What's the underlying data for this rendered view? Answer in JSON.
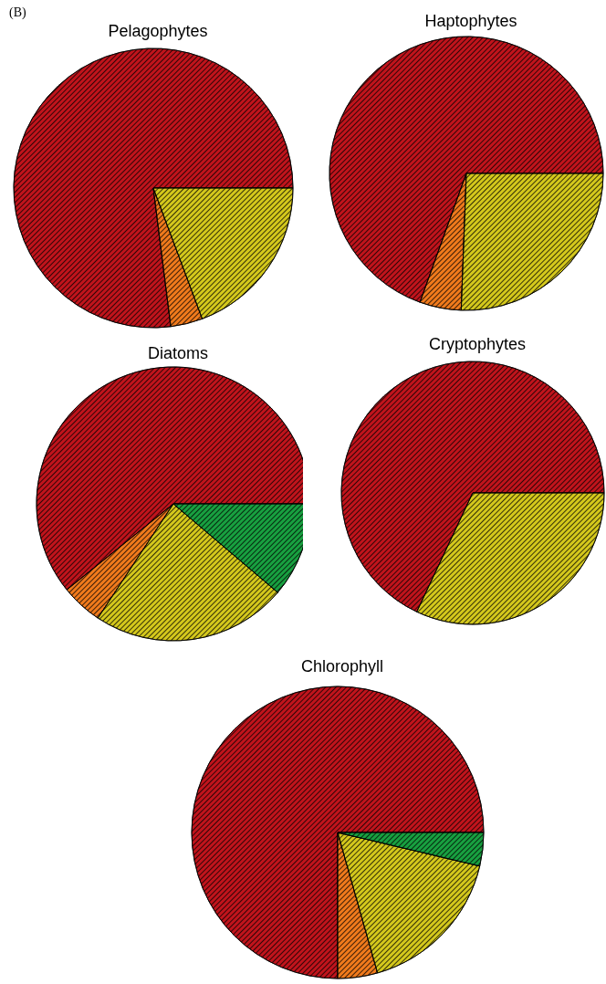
{
  "chart_data": [
    {
      "type": "pie",
      "title": "Pelagophytes",
      "annotations": [
        "(B)"
      ],
      "categories": [
        null,
        null,
        null
      ],
      "values": [
        77,
        3.7,
        19.3
      ],
      "colors": [
        "#c0141c",
        "#f07a1c",
        "#d4c81c"
      ]
    },
    {
      "type": "pie",
      "title": "Haptophytes",
      "categories": [
        null,
        null,
        null
      ],
      "values": [
        69.5,
        4.9,
        25.6
      ],
      "colors": [
        "#c0141c",
        "#f07a1c",
        "#d4c81c"
      ]
    },
    {
      "type": "pie",
      "title": "Diatoms",
      "categories": [
        null,
        null,
        null,
        null
      ],
      "values": [
        60.8,
        4.9,
        23.1,
        11.2
      ],
      "colors": [
        "#c0141c",
        "#f07a1c",
        "#d4c81c",
        "#18a040"
      ]
    },
    {
      "type": "pie",
      "title": "Cryptophytes",
      "categories": [
        null,
        null
      ],
      "values": [
        68,
        32
      ],
      "colors": [
        "#c0141c",
        "#d4c81c"
      ]
    },
    {
      "type": "pie",
      "title": "Chlorophyll",
      "categories": [
        null,
        null,
        null,
        null
      ],
      "values": [
        75,
        4.4,
        16.9,
        3.7
      ],
      "colors": [
        "#c0141c",
        "#f07a1c",
        "#d4c81c",
        "#18a040"
      ]
    }
  ]
}
